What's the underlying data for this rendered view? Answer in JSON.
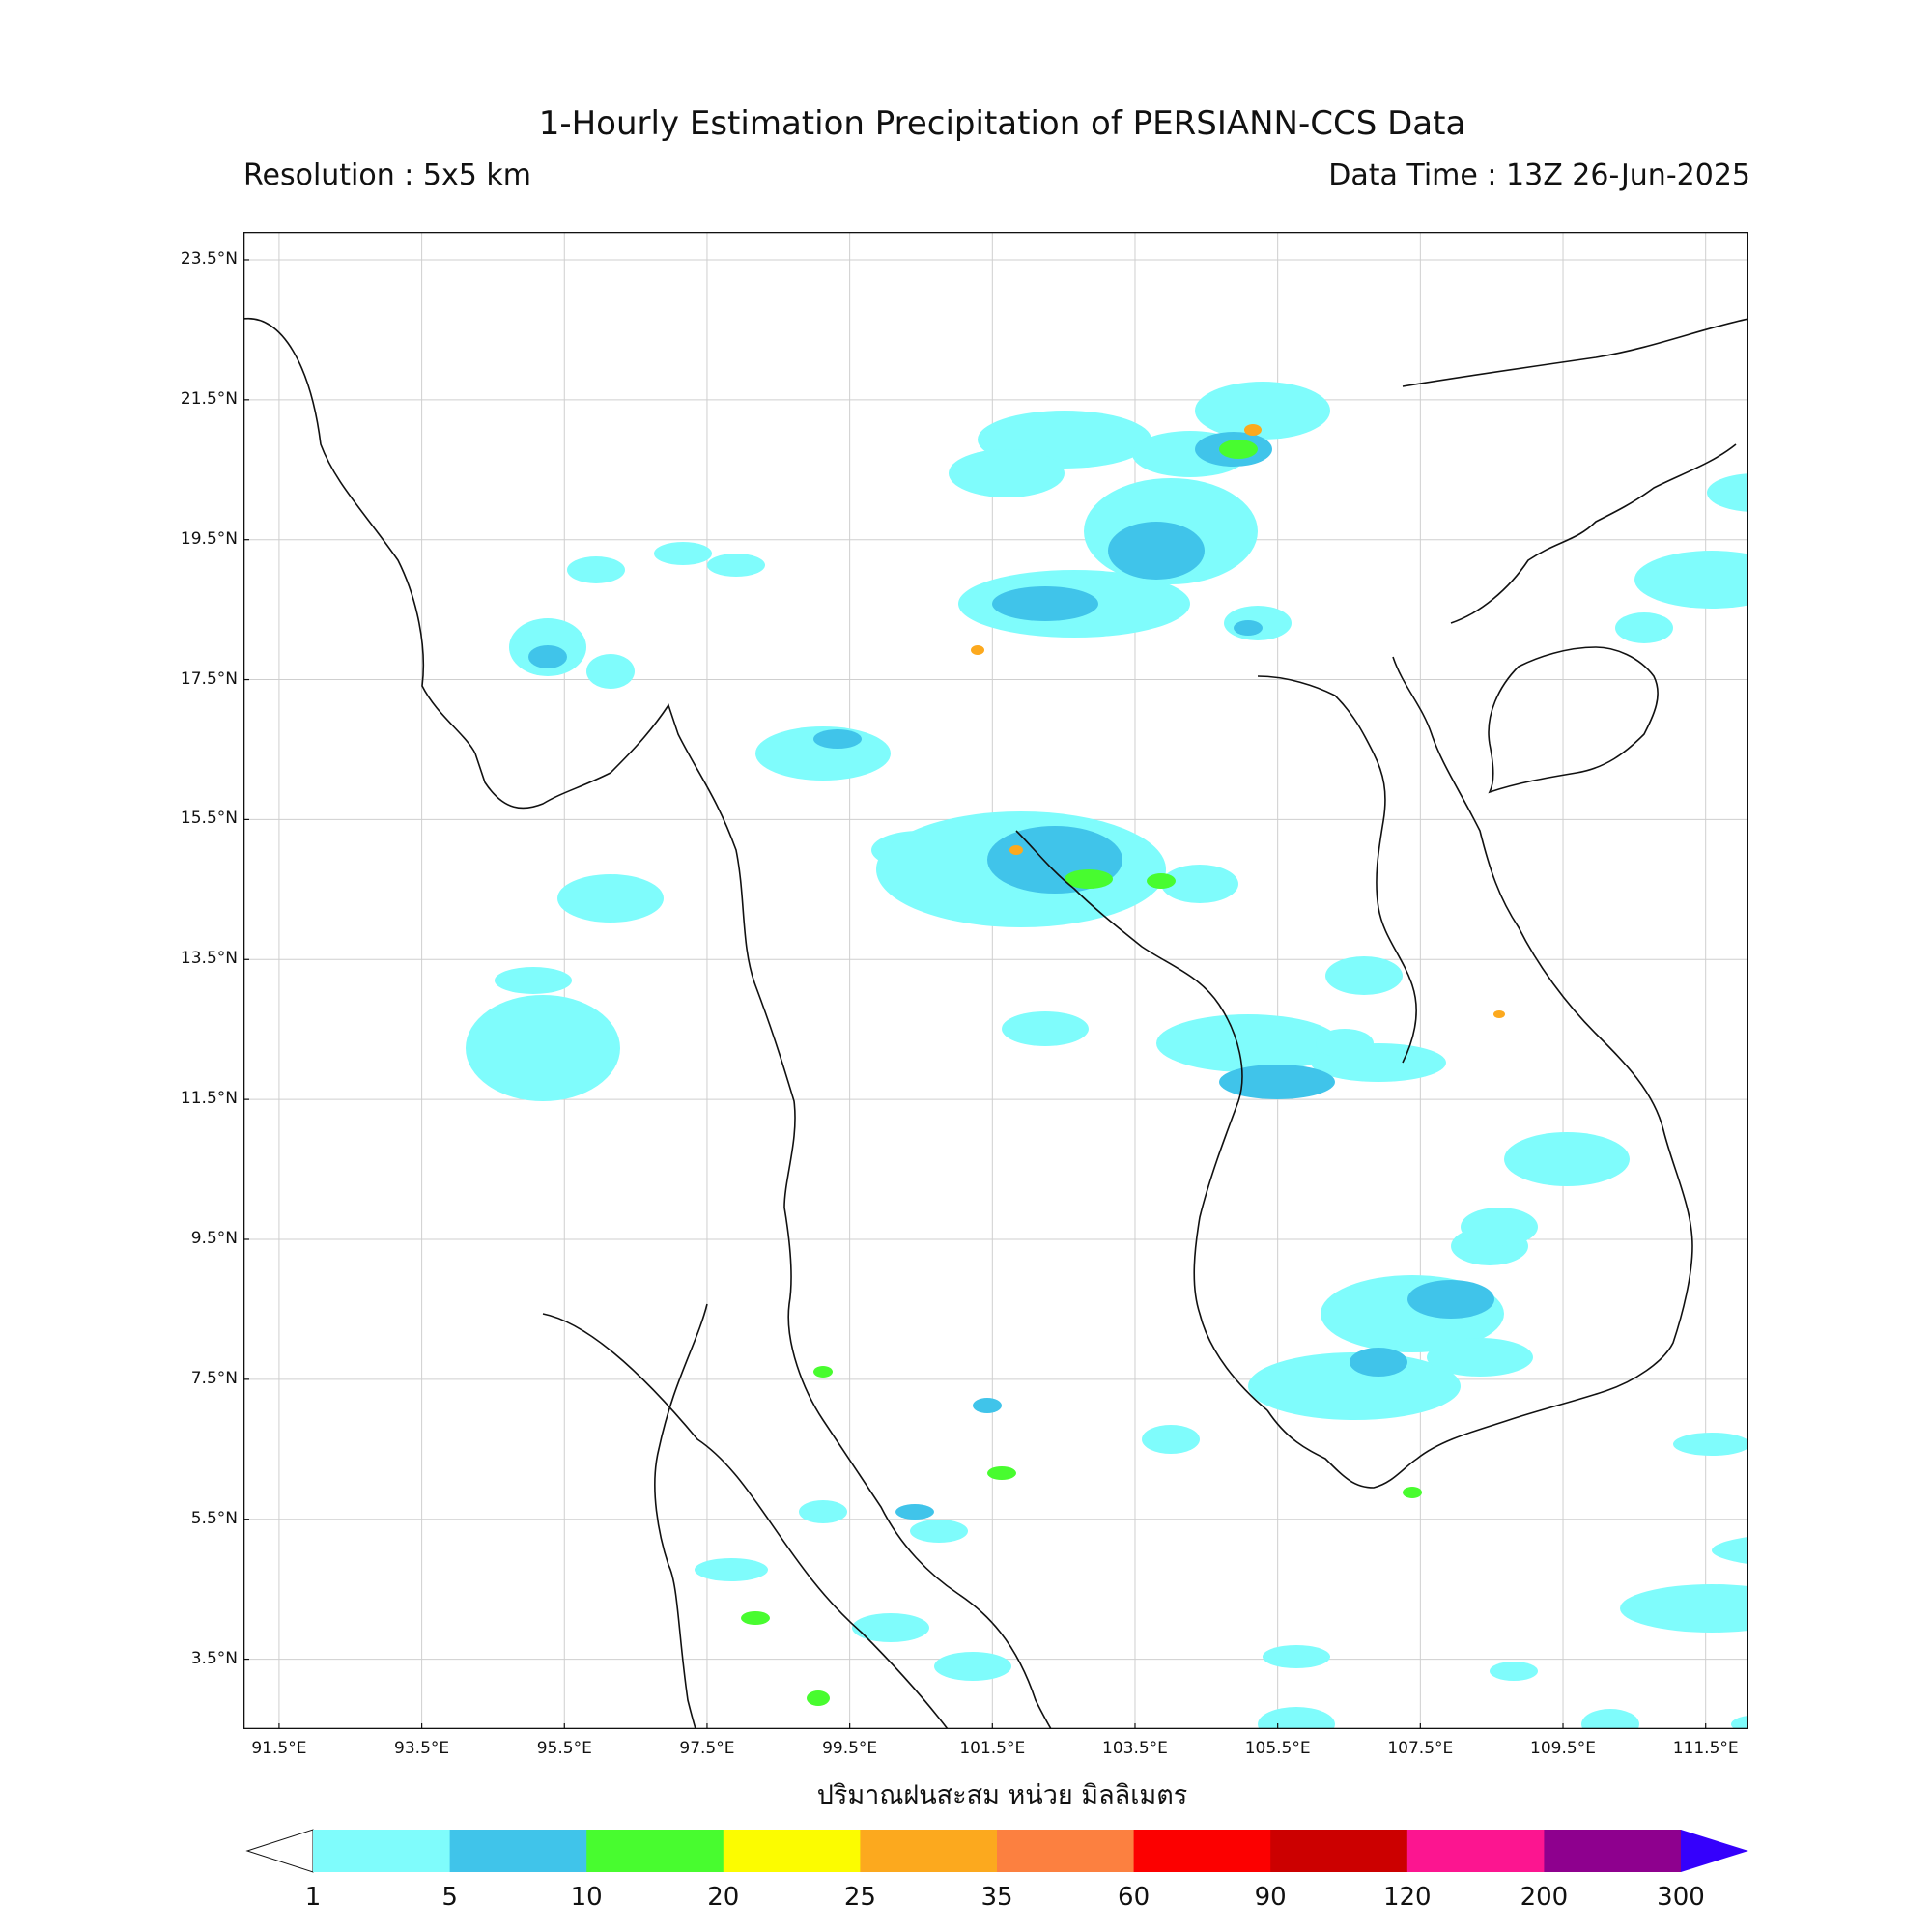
{
  "header": {
    "title": "1-Hourly Estimation Precipitation of PERSIANN-CCS Data",
    "resolution": "Resolution : 5x5 km",
    "data_time": "Data Time : 13Z 26-Jun-2025"
  },
  "map": {
    "lon_range": [
      91.0,
      112.1
    ],
    "lat_range": [
      2.5,
      23.9
    ],
    "x_ticks": [
      "91.5°E",
      "93.5°E",
      "95.5°E",
      "97.5°E",
      "99.5°E",
      "101.5°E",
      "103.5°E",
      "105.5°E",
      "107.5°E",
      "109.5°E",
      "111.5°E"
    ],
    "y_ticks": [
      "23.5°N",
      "21.5°N",
      "19.5°N",
      "17.5°N",
      "15.5°N",
      "13.5°N",
      "11.5°N",
      "9.5°N",
      "7.5°N",
      "5.5°N",
      "3.5°N"
    ],
    "x_tick_values": [
      91.5,
      93.5,
      95.5,
      97.5,
      99.5,
      101.5,
      103.5,
      105.5,
      107.5,
      109.5,
      111.5
    ],
    "y_tick_values": [
      23.5,
      21.5,
      19.5,
      17.5,
      15.5,
      13.5,
      11.5,
      9.5,
      7.5,
      5.5,
      3.5
    ],
    "grid": true,
    "xlabel": "ปริมาณฝนสะสม หน่วย มิลลิเมตร"
  },
  "colorbar": {
    "bounds": [
      "1",
      "5",
      "10",
      "20",
      "25",
      "35",
      "60",
      "90",
      "120",
      "200",
      "300"
    ],
    "colors": [
      "#7ffcfc",
      "#40c4ea",
      "#48fc2f",
      "#fcfc00",
      "#fca91e",
      "#fc8040",
      "#fc0000",
      "#cc0000",
      "#fc1590",
      "#8e008e"
    ],
    "under_color": "#ffffff",
    "over_color": "#3500fc"
  }
}
